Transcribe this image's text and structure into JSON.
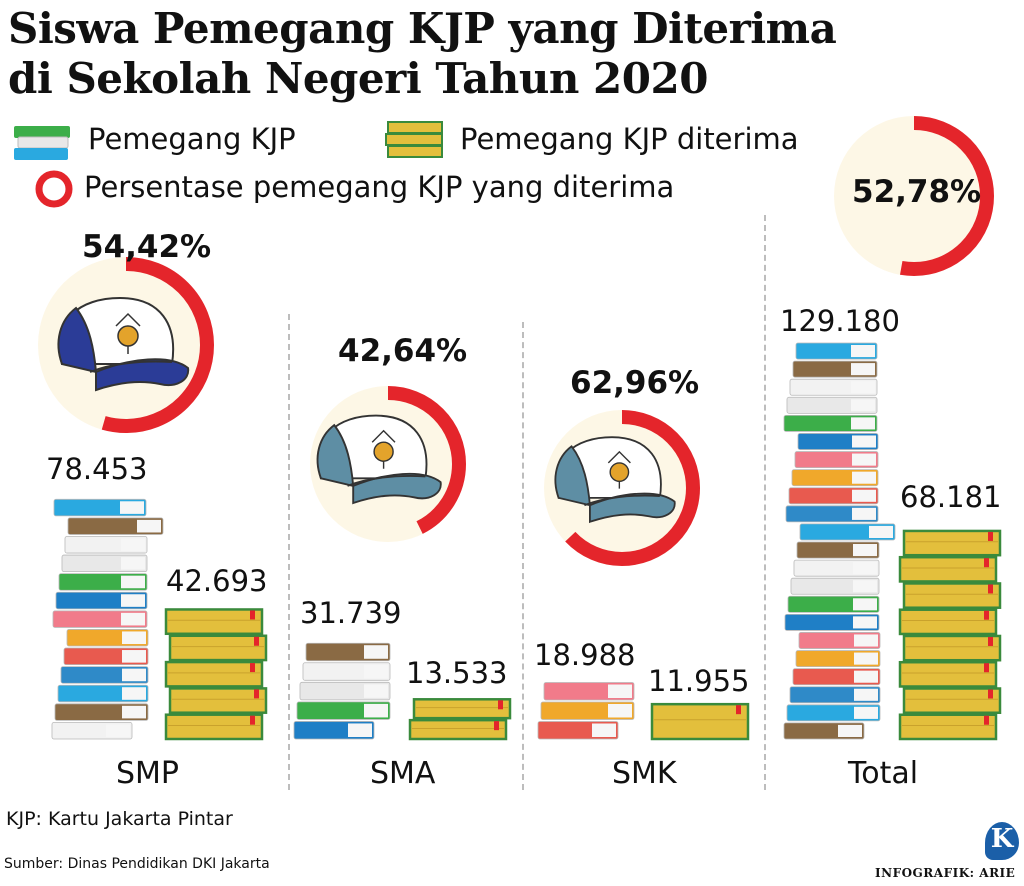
{
  "title": {
    "line1": "Siswa Pemegang KJP yang Diterima",
    "line2": "di Sekolah Negeri Tahun 2020"
  },
  "legend": {
    "holders": "Pemegang KJP",
    "accepted": "Pemegang KJP diterima",
    "percent": "Persentase pemegang KJP yang diterima"
  },
  "chart_data": {
    "type": "bar",
    "categories": [
      "SMP",
      "SMA",
      "SMK",
      "Total"
    ],
    "series": [
      {
        "name": "Pemegang KJP",
        "values": [
          78453,
          31739,
          18988,
          129180
        ],
        "labels": [
          "78.453",
          "31.739",
          "18.988",
          "129.180"
        ]
      },
      {
        "name": "Pemegang KJP diterima",
        "values": [
          42693,
          13533,
          11955,
          68181
        ],
        "labels": [
          "42.693",
          "13.533",
          "11.955",
          "68.181"
        ]
      }
    ],
    "percent_accepted": {
      "name": "Persentase pemegang KJP yang diterima",
      "values": [
        54.42,
        42.64,
        62.96,
        52.78
      ],
      "labels": [
        "54,42%",
        "42,64%",
        "62,96%",
        "52,78%"
      ]
    }
  },
  "notes": {
    "abbreviation": "KJP: Kartu Jakarta Pintar",
    "source": "Sumber: Dinas Pendidikan DKI Jakarta",
    "credit": "INFOGRAFIK: ARIE",
    "logo_letter": "K"
  },
  "colors": {
    "ring": "#e4252b",
    "ring_track": "#fdf7e6",
    "cap_smp": "#2b3c97",
    "cap_other": "#5e8ea4",
    "gold_book": "#e3bf3c",
    "gold_edge": "#3a8a3c",
    "logo": "#1b5fa8"
  }
}
